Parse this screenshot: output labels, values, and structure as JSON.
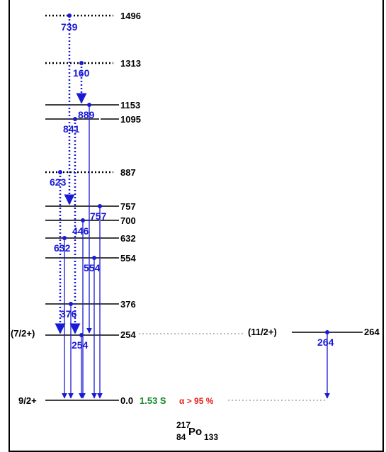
{
  "colors": {
    "transition": "#1a1ad6",
    "level": "#000000",
    "half_life": "#158a2a",
    "branching": "#e8201a"
  },
  "nucleus": {
    "A": "217",
    "Z": "84",
    "symbol": "Po",
    "N": "133"
  },
  "ground": {
    "energy": "0.0",
    "spin": "9/2+",
    "half_life": "1.53 S",
    "decay": "α > 95 %"
  },
  "levels": [
    {
      "energy": "1496",
      "dotted": true
    },
    {
      "energy": "1313",
      "dotted": true
    },
    {
      "energy": "1153",
      "dotted": false
    },
    {
      "energy": "1095",
      "dotted": false
    },
    {
      "energy": "887",
      "dotted": true
    },
    {
      "energy": "757",
      "dotted": false
    },
    {
      "energy": "700",
      "dotted": false
    },
    {
      "energy": "632",
      "dotted": false
    },
    {
      "energy": "554",
      "dotted": false
    },
    {
      "energy": "376",
      "dotted": false
    },
    {
      "energy": "254",
      "dotted": false,
      "spin": "(7/2+)"
    },
    {
      "energy": "264",
      "dotted": false,
      "spin": "(11/2+)"
    }
  ],
  "transitions": [
    {
      "label": "739",
      "dotted": true
    },
    {
      "label": "160",
      "dotted": true
    },
    {
      "label": "889",
      "dotted": false
    },
    {
      "label": "841",
      "dotted": true
    },
    {
      "label": "623",
      "dotted": true
    },
    {
      "label": "757",
      "dotted": false
    },
    {
      "label": "446",
      "dotted": false
    },
    {
      "label": "632",
      "dotted": true
    },
    {
      "label": "554",
      "dotted": false
    },
    {
      "label": "376",
      "dotted": false
    },
    {
      "label": "254",
      "dotted": false
    },
    {
      "label": "264",
      "dotted": false
    }
  ]
}
